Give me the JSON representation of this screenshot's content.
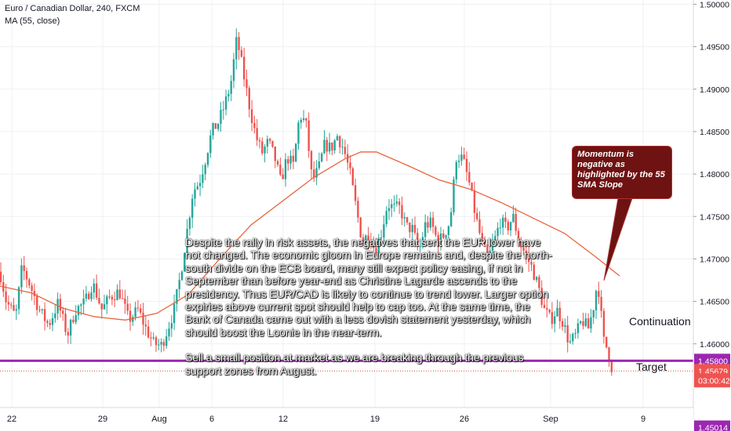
{
  "header": {
    "symbol_line": "Euro / Canadian Dollar, 240, FXCM",
    "indicator_line": "MA (55, close)"
  },
  "annotation": {
    "paragraph1": "Despite the rally in risk assets, the negatives that sent the EUR lower have not changed. The economic gloom in Europe remains and, despite the north-south divide on the ECB board, many still expect policy easing, if not in September than before year-end as Christine Lagarde ascends to the presidency. Thus EUR/CAD is likely to continue to trend lower. Larger option expiries above current spot should help to cap too. At the same time, the Bank of Canada came out with a less dovish statement yesterday, which should boost the Loonie in the near-term.",
    "paragraph2": "Sell a small position at market as we are breaking through the previous support zones from August.",
    "callout": "Momentum is negative as highlighted by the 55 SMA Slope"
  },
  "levels": {
    "continuation_label": "Continuation",
    "target_label": "Target"
  },
  "chart_data": {
    "type": "candlestick",
    "title": "Euro / Canadian Dollar, 240, FXCM",
    "ylim": [
      1.4525,
      1.5005
    ],
    "yticks": [
      "1.50000",
      "1.49500",
      "1.49000",
      "1.48500",
      "1.48000",
      "1.47500",
      "1.47000",
      "1.46500",
      "1.46000"
    ],
    "ytick_values": [
      1.5,
      1.495,
      1.49,
      1.485,
      1.48,
      1.475,
      1.47,
      1.465,
      1.46
    ],
    "xticks": [
      "22",
      "29",
      "Aug",
      "6",
      "12",
      "19",
      "26",
      "Sep",
      "9"
    ],
    "ma_label": "MA (55, close)",
    "price_labels": [
      {
        "text": "1.45800",
        "value": 1.458,
        "color": "#9c27b0",
        "style": "solid-purple"
      },
      {
        "text": "1.45679",
        "value": 1.45679,
        "color": "#ef5350",
        "style": "last-price"
      },
      {
        "text": "03:00:42",
        "value": 1.4557,
        "color": "#ffffff",
        "style": "countdown"
      },
      {
        "text": "1.45014",
        "value": 1.45014,
        "color": "#9c27b0",
        "style": "solid-purple"
      }
    ],
    "hlines": [
      {
        "name": "Continuation",
        "value": 1.458,
        "color": "#9c27b0"
      },
      {
        "name": "Target",
        "value": 1.45014,
        "color": "#9c27b0"
      },
      {
        "name": "last",
        "value": 1.45679,
        "color": "#ef5350",
        "dotted": true
      }
    ],
    "colors": {
      "up": "#26a69a",
      "down": "#ef5350",
      "ma": "#e8643c",
      "grid": "#eef0f3"
    },
    "anchors": [
      [
        0,
        1.4685
      ],
      [
        8,
        1.465
      ],
      [
        20,
        1.4632
      ],
      [
        28,
        1.469
      ],
      [
        38,
        1.467
      ],
      [
        50,
        1.464
      ],
      [
        62,
        1.4622
      ],
      [
        74,
        1.4648
      ],
      [
        86,
        1.461
      ],
      [
        96,
        1.464
      ],
      [
        108,
        1.4648
      ],
      [
        118,
        1.4672
      ],
      [
        130,
        1.464
      ],
      [
        140,
        1.4655
      ],
      [
        152,
        1.4662
      ],
      [
        164,
        1.4628
      ],
      [
        176,
        1.464
      ],
      [
        186,
        1.4618
      ],
      [
        196,
        1.46
      ],
      [
        206,
        1.4598
      ],
      [
        214,
        1.4618
      ],
      [
        222,
        1.464
      ],
      [
        230,
        1.468
      ],
      [
        238,
        1.473
      ],
      [
        246,
        1.478
      ],
      [
        254,
        1.479
      ],
      [
        262,
        1.4818
      ],
      [
        270,
        1.485
      ],
      [
        278,
        1.486
      ],
      [
        286,
        1.488
      ],
      [
        294,
        1.4905
      ],
      [
        302,
        1.496
      ],
      [
        310,
        1.492
      ],
      [
        318,
        1.488
      ],
      [
        326,
        1.4845
      ],
      [
        334,
        1.4825
      ],
      [
        342,
        1.4838
      ],
      [
        350,
        1.482
      ],
      [
        358,
        1.479
      ],
      [
        366,
        1.482
      ],
      [
        374,
        1.481
      ],
      [
        382,
        1.487
      ],
      [
        390,
        1.486
      ],
      [
        398,
        1.4792
      ],
      [
        406,
        1.4805
      ],
      [
        414,
        1.4835
      ],
      [
        422,
        1.483
      ],
      [
        430,
        1.4845
      ],
      [
        438,
        1.483
      ],
      [
        446,
        1.4802
      ],
      [
        454,
        1.476
      ],
      [
        462,
        1.472
      ],
      [
        470,
        1.473
      ],
      [
        478,
        1.471
      ],
      [
        486,
        1.473
      ],
      [
        494,
        1.4765
      ],
      [
        502,
        1.476
      ],
      [
        510,
        1.476
      ],
      [
        518,
        1.4738
      ],
      [
        526,
        1.4735
      ],
      [
        534,
        1.4708
      ],
      [
        542,
        1.474
      ],
      [
        550,
        1.4742
      ],
      [
        558,
        1.472
      ],
      [
        566,
        1.4728
      ],
      [
        574,
        1.4745
      ],
      [
        582,
        1.4822
      ],
      [
        590,
        1.4818
      ],
      [
        598,
        1.479
      ],
      [
        606,
        1.4752
      ],
      [
        614,
        1.472
      ],
      [
        622,
        1.47
      ],
      [
        630,
        1.472
      ],
      [
        638,
        1.4745
      ],
      [
        646,
        1.4735
      ],
      [
        654,
        1.475
      ],
      [
        662,
        1.472
      ],
      [
        670,
        1.4705
      ],
      [
        678,
        1.469
      ],
      [
        686,
        1.4668
      ],
      [
        694,
        1.464
      ],
      [
        702,
        1.4628
      ],
      [
        710,
        1.464
      ],
      [
        718,
        1.4625
      ],
      [
        726,
        1.46
      ],
      [
        734,
        1.461
      ],
      [
        742,
        1.4628
      ],
      [
        750,
        1.4618
      ],
      [
        756,
        1.464
      ],
      [
        762,
        1.4675
      ],
      [
        766,
        1.4638
      ],
      [
        770,
        1.4602
      ],
      [
        774,
        1.4595
      ],
      [
        778,
        1.458
      ],
      [
        781,
        1.45679
      ]
    ],
    "ma_points": [
      [
        0,
        1.4668
      ],
      [
        40,
        1.466
      ],
      [
        80,
        1.4642
      ],
      [
        120,
        1.4632
      ],
      [
        160,
        1.4628
      ],
      [
        200,
        1.4636
      ],
      [
        240,
        1.4658
      ],
      [
        280,
        1.47
      ],
      [
        320,
        1.474
      ],
      [
        360,
        1.4768
      ],
      [
        400,
        1.4796
      ],
      [
        440,
        1.4818
      ],
      [
        460,
        1.4826
      ],
      [
        480,
        1.4826
      ],
      [
        520,
        1.481
      ],
      [
        560,
        1.4793
      ],
      [
        600,
        1.4782
      ],
      [
        640,
        1.4766
      ],
      [
        680,
        1.4748
      ],
      [
        720,
        1.473
      ],
      [
        760,
        1.4702
      ],
      [
        790,
        1.468
      ]
    ]
  }
}
